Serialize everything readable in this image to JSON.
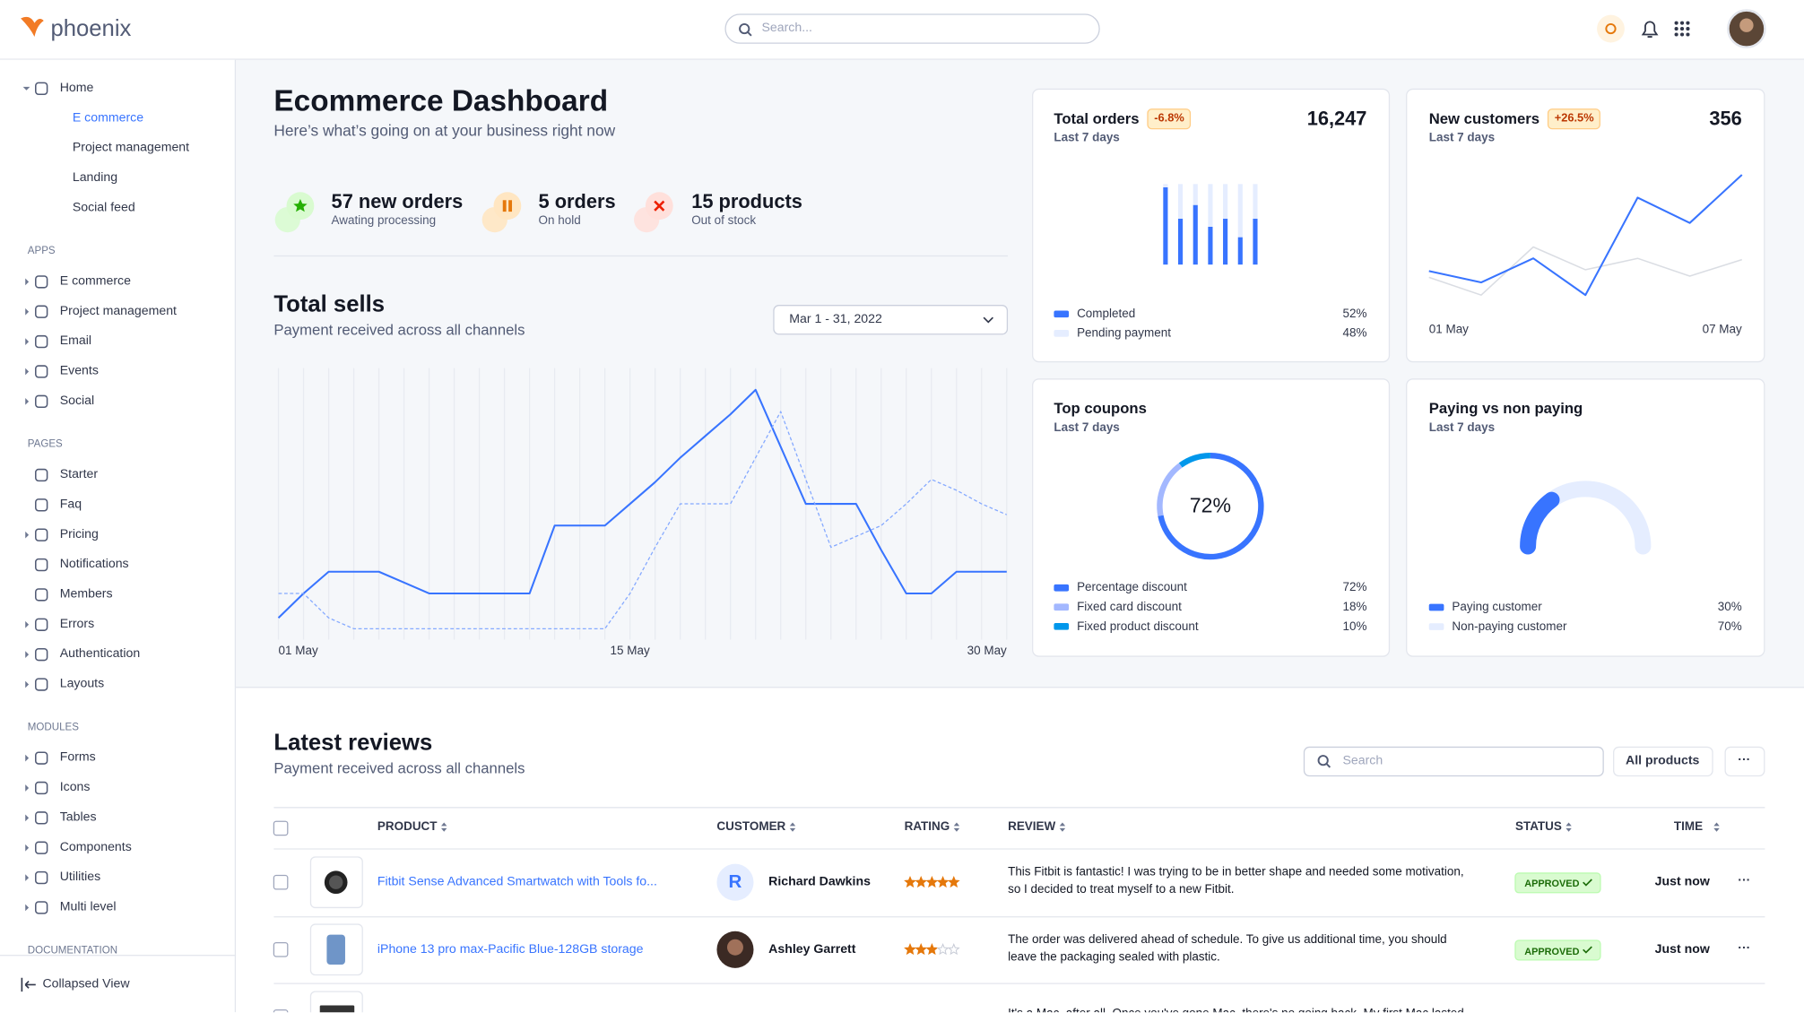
{
  "header": {
    "brand": "phoenix",
    "search_placeholder": "Search..."
  },
  "sidebar": {
    "groups": [
      {
        "items": [
          {
            "label": "Home",
            "expandable": true,
            "children": [
              "E commerce",
              "Project management",
              "Landing",
              "Social feed"
            ],
            "active_child": 0
          }
        ]
      },
      {
        "title": "APPS",
        "items": [
          {
            "label": "E commerce",
            "expandable": true
          },
          {
            "label": "Project management",
            "expandable": true
          },
          {
            "label": "Email",
            "expandable": true
          },
          {
            "label": "Events",
            "expandable": true
          },
          {
            "label": "Social",
            "expandable": true
          }
        ]
      },
      {
        "title": "PAGES",
        "items": [
          {
            "label": "Starter",
            "expandable": false
          },
          {
            "label": "Faq",
            "expandable": false
          },
          {
            "label": "Pricing",
            "expandable": true
          },
          {
            "label": "Notifications",
            "expandable": false
          },
          {
            "label": "Members",
            "expandable": false
          },
          {
            "label": "Errors",
            "expandable": true
          },
          {
            "label": "Authentication",
            "expandable": true
          },
          {
            "label": "Layouts",
            "expandable": true
          }
        ]
      },
      {
        "title": "MODULES",
        "items": [
          {
            "label": "Forms",
            "expandable": true
          },
          {
            "label": "Icons",
            "expandable": true
          },
          {
            "label": "Tables",
            "expandable": true
          },
          {
            "label": "Components",
            "expandable": true
          },
          {
            "label": "Utilities",
            "expandable": true
          },
          {
            "label": "Multi level",
            "expandable": true
          }
        ]
      },
      {
        "title": "DOCUMENTATION"
      }
    ],
    "collapse": "Collapsed View"
  },
  "dashboard": {
    "title": "Ecommerce Dashboard",
    "subtitle": "Here’s what’s going on at your business right now",
    "stats": [
      {
        "value": "57 new orders",
        "caption": "Awating processing",
        "icon": "star",
        "color": "#25b003",
        "background": "#d9fbd0"
      },
      {
        "value": "5 orders",
        "caption": "On hold",
        "icon": "pause",
        "color": "#e5780b",
        "background": "#ffe6c2"
      },
      {
        "value": "15 products",
        "caption": "Out of stock",
        "icon": "cross",
        "color": "#ec1f00",
        "background": "#ffe0db"
      }
    ]
  },
  "total_sells": {
    "title": "Total sells",
    "subtitle": "Payment received across all channels",
    "date_range": "Mar 1 - 31, 2022",
    "chart": {
      "type": "line",
      "categories": [
        "01 May",
        null,
        null,
        null,
        null,
        null,
        null,
        null,
        null,
        null,
        null,
        null,
        null,
        null,
        "15 May",
        null,
        null,
        null,
        null,
        null,
        null,
        null,
        null,
        null,
        null,
        null,
        null,
        null,
        null,
        "30 May"
      ],
      "series": [
        {
          "color": "#3874ff",
          "style": "solid",
          "values": [
            8,
            17,
            25,
            25,
            25,
            21,
            17,
            17,
            17,
            17,
            17,
            42,
            42,
            42,
            50,
            58,
            67,
            75,
            83,
            92,
            71,
            50,
            50,
            50,
            33,
            17,
            17,
            25,
            25,
            25
          ]
        },
        {
          "color": "#85a9ff",
          "style": "dashed",
          "values": [
            17,
            17,
            8,
            4,
            4,
            4,
            4,
            4,
            4,
            4,
            4,
            4,
            4,
            4,
            17,
            34,
            50,
            50,
            50,
            67,
            84,
            59,
            34,
            38,
            42,
            50,
            59,
            55,
            50,
            46
          ]
        }
      ],
      "ylim": [
        0,
        100
      ],
      "grid": true
    }
  },
  "cards": [
    {
      "title": "Total orders",
      "badge": "-6.8%",
      "subtitle": "Last 7 days",
      "total": {
        "value": 16247,
        "label": "16,247"
      },
      "chart": {
        "type": "stacked-bar",
        "ylim": [
          0,
          100
        ],
        "series": [
          {
            "name": "Completed",
            "color": "#3874ff",
            "values": [
              96,
              57,
              74,
              47,
              57,
              34,
              57
            ],
            "share": 52,
            "share_label": "52%"
          },
          {
            "name": "Pending payment",
            "color": "#e5edff",
            "values": [
              4,
              43,
              26,
              53,
              43,
              66,
              43
            ],
            "share": 48,
            "share_label": "48%"
          }
        ]
      }
    },
    {
      "title": "New customers",
      "badge": "+26.5%",
      "subtitle": "Last 7 days",
      "total": 356,
      "chart": {
        "type": "line",
        "categories": [
          "01 May",
          null,
          null,
          null,
          null,
          null,
          "07 May"
        ],
        "ylim": [
          0,
          100
        ],
        "series": [
          {
            "color": "#3874ff",
            "values": [
              24,
              15,
              34,
              5,
              82,
              62,
              100
            ]
          },
          {
            "color": "#daddE3",
            "values": [
              19,
              5,
              43,
              25,
              34,
              20,
              33
            ]
          }
        ]
      }
    },
    {
      "title": "Top coupons",
      "subtitle": "Last 7 days",
      "chart": {
        "type": "donut",
        "categories": [
          "Percentage discount",
          "Fixed card discount",
          "Fixed product discount"
        ],
        "values": [
          72,
          18,
          10
        ],
        "value_labels": [
          "72%",
          "18%",
          "10%"
        ],
        "colors": [
          "#3874ff",
          "#a3b8ff",
          "#0097eb"
        ]
      }
    },
    {
      "title": "Paying vs non paying",
      "subtitle": "Last 7 days",
      "chart": {
        "type": "gauge",
        "categories": [
          "Paying customer",
          "Non-paying customer"
        ],
        "values": [
          30,
          70
        ],
        "value_labels": [
          "30%",
          "70%"
        ],
        "colors": [
          "#3874ff",
          "#e5edff"
        ]
      }
    }
  ],
  "reviews": {
    "title": "Latest reviews",
    "subtitle": "Payment received across all channels",
    "search_placeholder": "Search",
    "filter": "All products",
    "more": "···",
    "columns": [
      "PRODUCT",
      "CUSTOMER",
      "RATING",
      "REVIEW",
      "STATUS",
      "TIME"
    ],
    "rows": [
      {
        "product": "Fitbit Sense Advanced Smartwatch with Tools fo...",
        "customer": "Richard Dawkins",
        "initial": "R",
        "rating": 5,
        "review": "This Fitbit is fantastic! I was trying to be in better shape and needed some motivation, so I decided to treat myself to a new Fitbit.",
        "status": "APPROVED",
        "time": "Just now"
      },
      {
        "product": "iPhone 13 pro max-Pacific Blue-128GB storage",
        "customer": "Ashley Garrett",
        "rating": 3,
        "review": "The order was delivered ahead of schedule. To give us additional time, you should leave the packaging sealed with plastic.",
        "status": "APPROVED",
        "time": "Just now"
      },
      {
        "review": "It's a Mac, after all. Once you've gone Mac, there's no going back. My first Mac lasted"
      }
    ]
  }
}
